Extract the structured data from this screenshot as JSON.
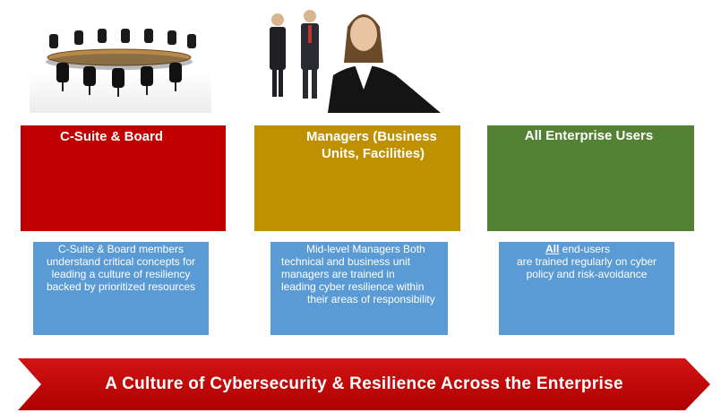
{
  "columns": [
    {
      "header": "C-Suite & Board",
      "description": "C-Suite & Board members understand critical concepts for leading a culture of resiliency backed by prioritized resources",
      "header_color": "#c00000",
      "desc_color": "#5b9bd5",
      "image_icon": "conference-table-icon"
    },
    {
      "header_line1": "Managers (Business",
      "header_line2": "Units, Facilities)",
      "description_line1": "Mid-level Managers  Both",
      "description_line2": "technical and business unit",
      "description_line3": "managers are  trained in",
      "description_line4": "leading cyber resilience within",
      "description_line5": "their areas of responsibility",
      "header_color": "#bf9000",
      "desc_color": "#5b9bd5",
      "image_icon": "business-people-icon"
    },
    {
      "header": "All Enterprise Users",
      "description_emph": "All",
      "description_rest1": " end-users",
      "description_rest2": "are trained regularly on cyber policy and risk-avoidance",
      "header_color": "#548235",
      "desc_color": "#5b9bd5"
    }
  ],
  "banner": {
    "text": "A Culture of Cybersecurity & Resilience Across the Enterprise",
    "color": "#c00000"
  }
}
